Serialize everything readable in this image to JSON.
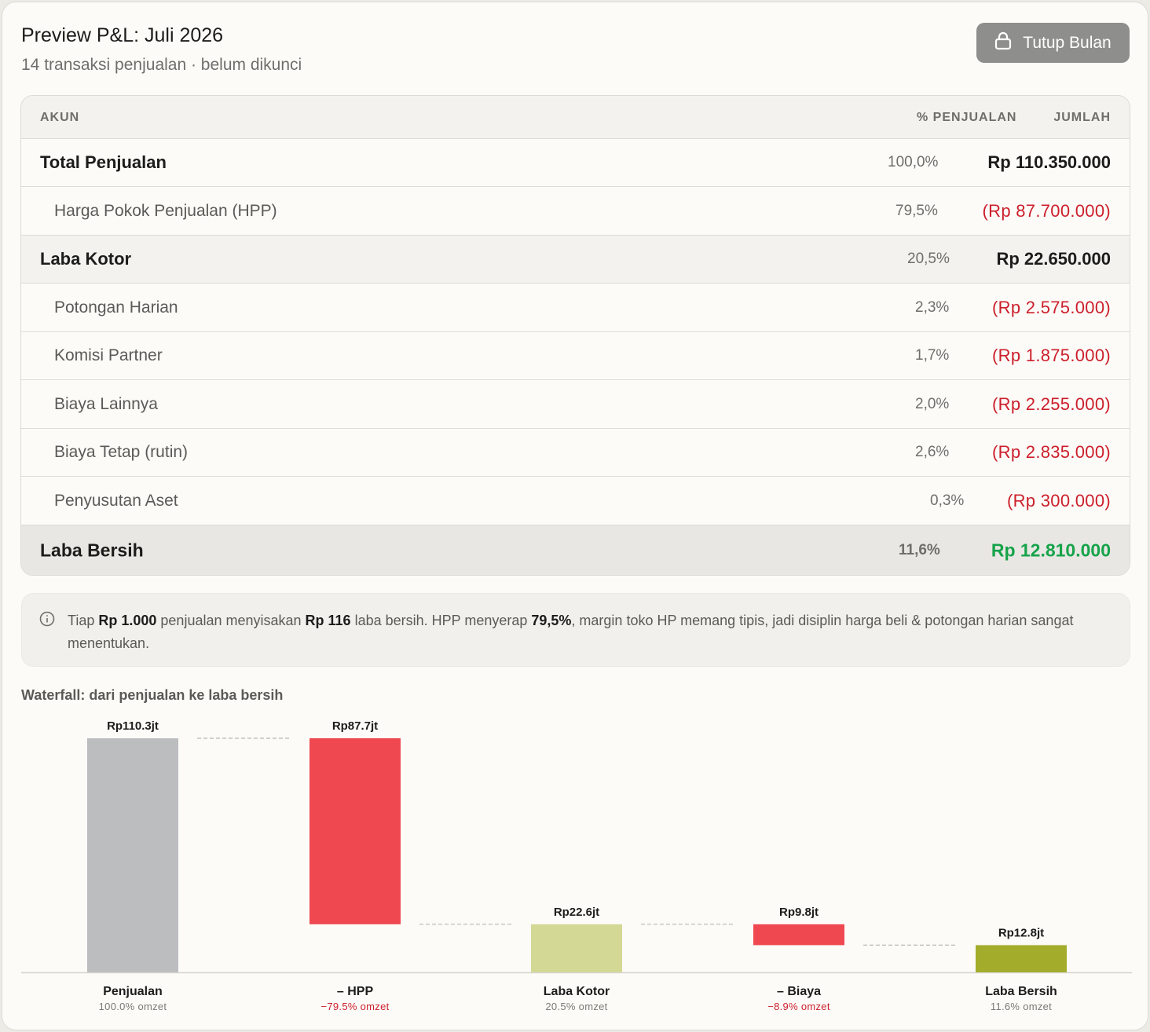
{
  "header": {
    "title": "Preview P&L: Juli 2026",
    "subtitle": "14 transaksi penjualan · belum dikunci",
    "close_button": "Tutup Bulan",
    "close_icon": "lock-icon"
  },
  "table": {
    "columns": {
      "account": "AKUN",
      "percent": "% PENJUALAN",
      "amount": "JUMLAH"
    },
    "rows": [
      {
        "label": "Total Penjualan",
        "percent": "100,0%",
        "amount": "Rp 110.350.000"
      },
      {
        "label": "Harga Pokok Penjualan (HPP)",
        "percent": "79,5%",
        "amount": "(Rp 87.700.000)"
      },
      {
        "label": "Laba Kotor",
        "percent": "20,5%",
        "amount": "Rp 22.650.000"
      },
      {
        "label": "Potongan Harian",
        "percent": "2,3%",
        "amount": "(Rp 2.575.000)"
      },
      {
        "label": "Komisi Partner",
        "percent": "1,7%",
        "amount": "(Rp 1.875.000)"
      },
      {
        "label": "Biaya Lainnya",
        "percent": "2,0%",
        "amount": "(Rp 2.255.000)"
      },
      {
        "label": "Biaya Tetap (rutin)",
        "percent": "2,6%",
        "amount": "(Rp 2.835.000)"
      },
      {
        "label": "Penyusutan Aset",
        "percent": "0,3%",
        "amount": "(Rp 300.000)"
      },
      {
        "label": "Laba Bersih",
        "percent": "11,6%",
        "amount": "Rp 12.810.000"
      }
    ]
  },
  "info": {
    "icon": "info-icon",
    "t1": "Tiap ",
    "b1": "Rp 1.000",
    "t2": " penjualan menyisakan ",
    "b2": "Rp 116",
    "t3": " laba bersih. HPP menyerap ",
    "b3": "79,5%",
    "t4": ", margin toko HP memang tipis, jadi disiplin harga beli & potongan harian sangat menentukan."
  },
  "waterfall_title": "Waterfall: dari penjualan ke laba bersih",
  "colors": {
    "negative": "#ef4850",
    "total": "#bcbdbf",
    "gross": "#d4d895",
    "net": "#a3ad2b",
    "negative_text": "#cc1f2b",
    "positive_text": "#16a34a"
  },
  "chart_data": {
    "type": "waterfall",
    "unit": "Rp juta",
    "bars": [
      {
        "name": "Penjualan",
        "value": 110.35,
        "start": 0,
        "end": 110.35,
        "value_label": "Rp110.3jt",
        "sub_label": "100.0% omzet",
        "kind": "total"
      },
      {
        "name": "– HPP",
        "value": -87.7,
        "start": 110.35,
        "end": 22.65,
        "value_label": "Rp87.7jt",
        "sub_label": "−79.5% omzet",
        "kind": "negative"
      },
      {
        "name": "Laba Kotor",
        "value": 22.65,
        "start": 0,
        "end": 22.65,
        "value_label": "Rp22.6jt",
        "sub_label": "20.5% omzet",
        "kind": "gross"
      },
      {
        "name": "– Biaya",
        "value": -9.84,
        "start": 22.65,
        "end": 12.81,
        "value_label": "Rp9.8jt",
        "sub_label": "−8.9% omzet",
        "kind": "negative"
      },
      {
        "name": "Laba Bersih",
        "value": 12.81,
        "start": 0,
        "end": 12.81,
        "value_label": "Rp12.8jt",
        "sub_label": "11.6% omzet",
        "kind": "net"
      }
    ]
  }
}
